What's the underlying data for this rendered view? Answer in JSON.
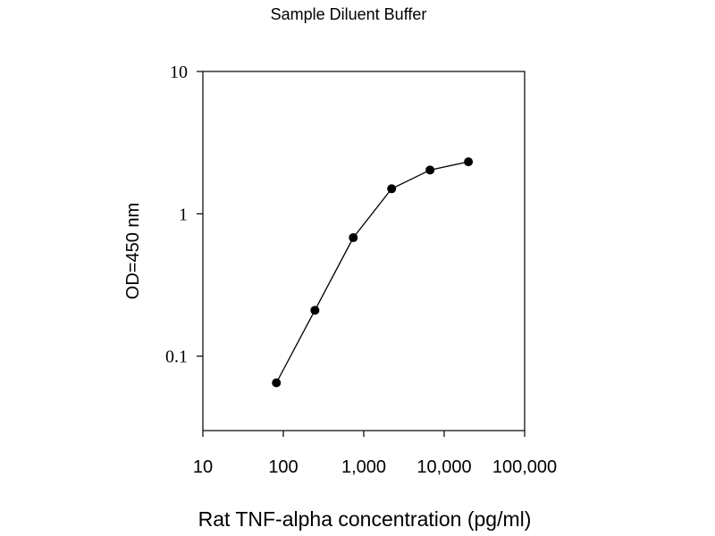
{
  "chart_data": {
    "type": "line",
    "title": "Sample Diluent Buffer",
    "xlabel": "Rat TNF-alpha concentration (pg/ml)",
    "ylabel": "OD=450 nm",
    "x_scale": "log",
    "y_scale": "log",
    "xlim": [
      10,
      100000
    ],
    "ylim": [
      0.03,
      10
    ],
    "x_ticks": [
      10,
      100,
      1000,
      10000,
      100000
    ],
    "x_tick_labels": [
      "10",
      "100",
      "1,000",
      "10,000",
      "100,000"
    ],
    "y_ticks": [
      10,
      1,
      0.1
    ],
    "y_tick_labels": [
      "10",
      "1",
      "0.1"
    ],
    "grid": false,
    "marker": "filled-circle",
    "line_color": "#000000",
    "series": [
      {
        "x": [
          82,
          247,
          741,
          2222,
          6667,
          20000
        ],
        "y": [
          0.065,
          0.21,
          0.68,
          1.5,
          2.03,
          2.32
        ]
      }
    ]
  }
}
